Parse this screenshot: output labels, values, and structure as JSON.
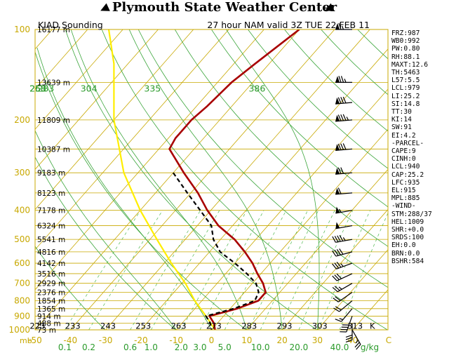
{
  "header": {
    "title": "Plymouth State Weather Center",
    "flag_icon": "vane-flag-icon"
  },
  "chart_data": {
    "type": "skew-t sounding",
    "station_label": "KIAD Sounding",
    "run_label": "27 hour NAM valid 3Z TUE 22 FEB 11",
    "pressure_ticks": [
      100,
      200,
      300,
      400,
      500,
      600,
      700,
      800,
      900,
      1000
    ],
    "pressure_range": [
      100,
      1000
    ],
    "pressure_axis_unit": "mb",
    "temperature_ticks": [
      -50,
      -40,
      -30,
      -20,
      -10,
      0,
      10,
      20,
      30,
      40
    ],
    "temperature_range": [
      -50,
      50
    ],
    "temperature_axis_unit": "C",
    "kelvin_ticks_bottom": [
      223,
      233,
      243,
      253,
      263,
      273,
      283,
      293,
      303,
      313
    ],
    "kelvin_unit": "K",
    "mixing_ratio_ticks": [
      "0.1",
      "0.2",
      "0.6",
      "1.0",
      "2.0",
      "3.0",
      "5.0",
      "10.0",
      "20.0",
      "40.0"
    ],
    "mixing_ratio_unit": "g/kg",
    "theta_labels": [
      "253",
      "268",
      "283",
      "304",
      "335",
      "386"
    ],
    "heights": [
      {
        "p": 100,
        "label": "16177 m"
      },
      {
        "p": 150,
        "label": "13639 m"
      },
      {
        "p": 200,
        "label": "11809 m"
      },
      {
        "p": 250,
        "label": "10387 m"
      },
      {
        "p": 300,
        "label": "9183 m"
      },
      {
        "p": 350,
        "label": "8123 m"
      },
      {
        "p": 400,
        "label": "7178 m"
      },
      {
        "p": 450,
        "label": "6324 m"
      },
      {
        "p": 500,
        "label": "5541 m"
      },
      {
        "p": 550,
        "label": "4816 m"
      },
      {
        "p": 600,
        "label": "4142 m"
      },
      {
        "p": 650,
        "label": "3516 m"
      },
      {
        "p": 700,
        "label": "2929 m"
      },
      {
        "p": 750,
        "label": "2376 m"
      },
      {
        "p": 800,
        "label": "1854 m"
      },
      {
        "p": 850,
        "label": "1365 m"
      },
      {
        "p": 900,
        "label": "914 m"
      },
      {
        "p": 950,
        "label": "488 m"
      },
      {
        "p": 1000,
        "label": "73 m"
      }
    ],
    "temperature_profile": [
      {
        "p": 100,
        "t": -50
      },
      {
        "p": 130,
        "t": -54
      },
      {
        "p": 150,
        "t": -56
      },
      {
        "p": 180,
        "t": -57
      },
      {
        "p": 200,
        "t": -58
      },
      {
        "p": 230,
        "t": -58
      },
      {
        "p": 250,
        "t": -57
      },
      {
        "p": 300,
        "t": -47
      },
      {
        "p": 350,
        "t": -38
      },
      {
        "p": 400,
        "t": -31
      },
      {
        "p": 450,
        "t": -24
      },
      {
        "p": 500,
        "t": -16
      },
      {
        "p": 550,
        "t": -10
      },
      {
        "p": 600,
        "t": -5
      },
      {
        "p": 650,
        "t": -1
      },
      {
        "p": 700,
        "t": 3
      },
      {
        "p": 750,
        "t": 6
      },
      {
        "p": 800,
        "t": 6
      },
      {
        "p": 850,
        "t": 2
      },
      {
        "p": 900,
        "t": -4
      },
      {
        "p": 950,
        "t": -1
      },
      {
        "p": 1000,
        "t": 1
      }
    ],
    "dewpoint_profile": [
      {
        "p": 300,
        "t": -50
      },
      {
        "p": 350,
        "t": -41
      },
      {
        "p": 400,
        "t": -33
      },
      {
        "p": 450,
        "t": -26
      },
      {
        "p": 500,
        "t": -22
      },
      {
        "p": 550,
        "t": -17
      },
      {
        "p": 600,
        "t": -10
      },
      {
        "p": 650,
        "t": -4
      },
      {
        "p": 700,
        "t": 1
      },
      {
        "p": 750,
        "t": 4
      },
      {
        "p": 800,
        "t": 5
      },
      {
        "p": 850,
        "t": 1
      },
      {
        "p": 900,
        "t": -5
      },
      {
        "p": 950,
        "t": -2
      },
      {
        "p": 1000,
        "t": 0
      }
    ],
    "parcel_profile": [
      {
        "p": 1000,
        "t": 1
      },
      {
        "p": 900,
        "t": -5
      },
      {
        "p": 800,
        "t": -12
      },
      {
        "p": 700,
        "t": -19
      },
      {
        "p": 600,
        "t": -28
      },
      {
        "p": 500,
        "t": -38
      },
      {
        "p": 400,
        "t": -50
      },
      {
        "p": 300,
        "t": -64
      },
      {
        "p": 200,
        "t": -80
      },
      {
        "p": 130,
        "t": -94
      },
      {
        "p": 100,
        "t": -104
      }
    ],
    "winds": [
      {
        "p": 100,
        "dir": 270,
        "kt": 65
      },
      {
        "p": 150,
        "dir": 270,
        "kt": 75
      },
      {
        "p": 175,
        "dir": 265,
        "kt": 80
      },
      {
        "p": 200,
        "dir": 265,
        "kt": 85
      },
      {
        "p": 250,
        "dir": 265,
        "kt": 80
      },
      {
        "p": 300,
        "dir": 265,
        "kt": 70
      },
      {
        "p": 350,
        "dir": 265,
        "kt": 60
      },
      {
        "p": 400,
        "dir": 260,
        "kt": 55
      },
      {
        "p": 450,
        "dir": 260,
        "kt": 50
      },
      {
        "p": 500,
        "dir": 260,
        "kt": 45
      },
      {
        "p": 550,
        "dir": 255,
        "kt": 40
      },
      {
        "p": 600,
        "dir": 250,
        "kt": 35
      },
      {
        "p": 650,
        "dir": 245,
        "kt": 30
      },
      {
        "p": 700,
        "dir": 240,
        "kt": 25
      },
      {
        "p": 750,
        "dir": 235,
        "kt": 20
      },
      {
        "p": 800,
        "dir": 230,
        "kt": 20
      },
      {
        "p": 850,
        "dir": 220,
        "kt": 15
      },
      {
        "p": 900,
        "dir": 200,
        "kt": 40
      },
      {
        "p": 950,
        "dir": 180,
        "kt": 30
      },
      {
        "p": 1000,
        "dir": 150,
        "kt": 25
      }
    ],
    "colors": {
      "isobar": "#c8a800",
      "isotherm": "#c8a800",
      "dry_adiabat": "#3aa53a",
      "moist_adiabat": "#3aa53a",
      "mixing_ratio": "#4fb84f",
      "temperature": "#a80000",
      "dewpoint": "#000000",
      "parcel": "#ffee00",
      "axis_label_yellow": "#c8a800",
      "axis_label_green": "#2a9a2a"
    }
  },
  "indices": [
    "FRZ:987",
    "WB0:992",
    "PW:0.80",
    "RH:88.1",
    "MAXT:12.6",
    "TH:5463",
    "L57:5.5",
    "LCL:979",
    "LI:25.2",
    "SI:14.8",
    "TT:30",
    "KI:14",
    "SW:91",
    "EI:4.2",
    "-PARCEL-",
    "CAPE:9",
    "CINH:0",
    "LCL:940",
    "CAP:25.2",
    "LFC:935",
    "EL:915",
    "MPL:885",
    "-WIND-",
    "STM:288/37",
    "HEL:1009",
    "SHR:+0.0",
    "SRDS:100",
    "EH:0.0",
    "BRN:0.0",
    "BSHR:584"
  ]
}
